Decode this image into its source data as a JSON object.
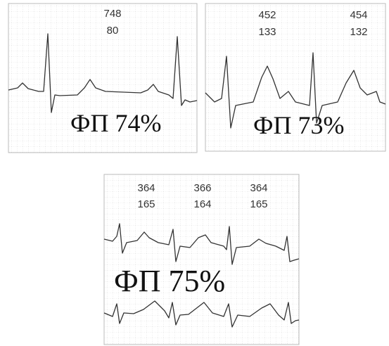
{
  "panels": [
    {
      "labels": [
        [
          "748",
          "80"
        ]
      ],
      "caption": "ФП 74%"
    },
    {
      "labels": [
        [
          "452",
          "133"
        ],
        [
          "454",
          "132"
        ]
      ],
      "caption": "ФП 73%"
    },
    {
      "labels": [
        [
          "364",
          "165"
        ],
        [
          "366",
          "164"
        ],
        [
          "364",
          "165"
        ]
      ],
      "caption": "ФП 75%"
    }
  ]
}
